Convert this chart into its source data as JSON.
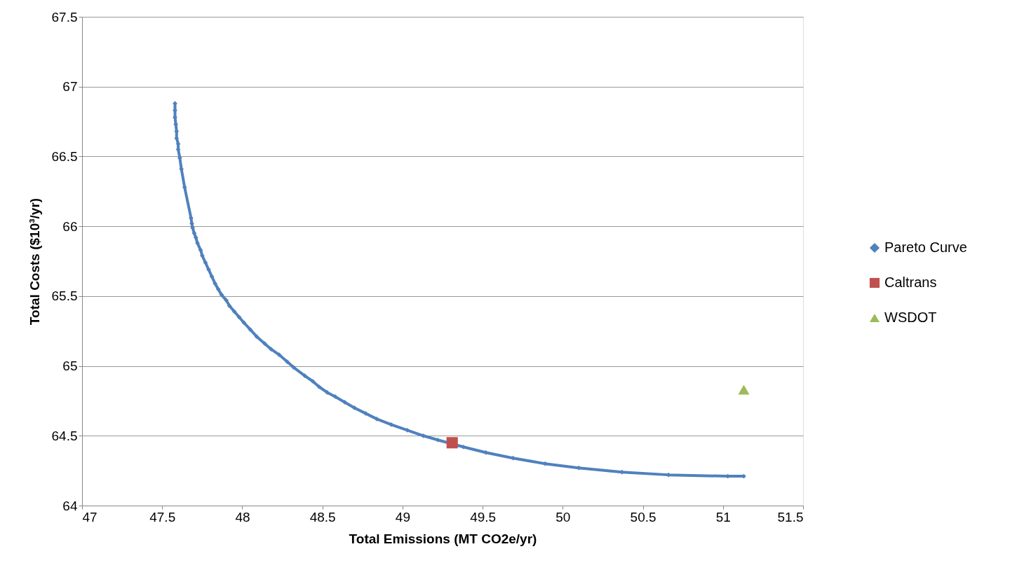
{
  "chart_data": {
    "type": "line",
    "xlabel": "Total Emissions (MT CO2e/yr)",
    "ylabel": "Total Costs ($10³/yr)",
    "xlim": [
      47,
      51.5
    ],
    "xticks": [
      47,
      47.5,
      48,
      48.5,
      49,
      49.5,
      50,
      50.5,
      51,
      51.5
    ],
    "ylim": [
      64,
      67.5
    ],
    "yticks": [
      64,
      64.5,
      65,
      65.5,
      66,
      66.5,
      67,
      67.5
    ],
    "grid": "y",
    "legend": "right",
    "series": [
      {
        "name": "Pareto Curve",
        "marker": "diamond",
        "color": "#4f81bd",
        "x": [
          47.58,
          47.58,
          47.58,
          47.585,
          47.59,
          47.59,
          47.6,
          47.6,
          47.61,
          47.62,
          47.64,
          47.68,
          47.685,
          47.69,
          47.7,
          47.71,
          47.72,
          47.74,
          47.75,
          47.77,
          47.79,
          47.81,
          47.83,
          47.85,
          47.87,
          47.9,
          47.92,
          47.95,
          47.98,
          48.01,
          48.05,
          48.09,
          48.14,
          48.18,
          48.23,
          48.28,
          48.32,
          48.39,
          48.44,
          48.48,
          48.53,
          48.58,
          48.64,
          48.7,
          48.77,
          48.84,
          48.93,
          49.03,
          49.13,
          49.22,
          49.38,
          49.52,
          49.69,
          49.89,
          50.1,
          50.37,
          50.66,
          51.03,
          51.13
        ],
        "values": [
          66.88,
          66.83,
          66.78,
          66.73,
          66.68,
          66.63,
          66.59,
          66.55,
          66.49,
          66.41,
          66.28,
          66.06,
          66.02,
          65.99,
          65.95,
          65.92,
          65.88,
          65.83,
          65.79,
          65.74,
          65.69,
          65.64,
          65.59,
          65.55,
          65.51,
          65.47,
          65.43,
          65.39,
          65.35,
          65.31,
          65.26,
          65.21,
          65.16,
          65.12,
          65.08,
          65.03,
          64.99,
          64.93,
          64.89,
          64.85,
          64.81,
          64.78,
          64.74,
          64.7,
          64.66,
          64.62,
          64.58,
          64.54,
          64.5,
          64.47,
          64.42,
          64.38,
          64.34,
          64.3,
          64.27,
          64.24,
          64.22,
          64.21,
          64.21
        ]
      },
      {
        "name": "Caltrans",
        "type": "scatter",
        "marker": "square",
        "color": "#c0504d",
        "x": [
          49.31
        ],
        "values": [
          64.45
        ]
      },
      {
        "name": "WSDOT",
        "type": "scatter",
        "marker": "triangle",
        "color": "#9bbb59",
        "x": [
          51.13
        ],
        "values": [
          64.83
        ]
      }
    ]
  }
}
